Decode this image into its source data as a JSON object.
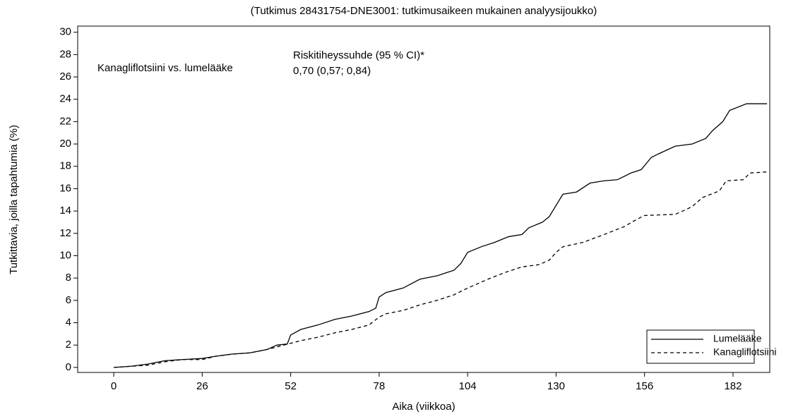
{
  "chart_data": {
    "type": "line",
    "title": "(Tutkimus 28431754-DNE3001: tutkimusaikeen mukainen analyysijoukko)",
    "x_label": "Aika (viikkoa)",
    "y_label": "Tutkittavia, joilla tapahtumia (%)",
    "annotations": [
      "Kanagliflotsiini vs. lumelääke",
      "Riskitiheyssuhde (95 % CI)*",
      "0,70 (0,57; 0,84)"
    ],
    "xlim": [
      -10.6,
      192.8
    ],
    "ylim": [
      -0.45,
      30.55
    ],
    "xticks": [
      0,
      26,
      52,
      78,
      104,
      130,
      156,
      182
    ],
    "yticks": [
      0,
      2,
      4,
      6,
      8,
      10,
      12,
      14,
      16,
      18,
      20,
      22,
      24,
      26,
      28,
      30
    ],
    "legend": "lower right",
    "series": [
      {
        "name": "Lumelääke",
        "color": "#000000",
        "line_style": "solid",
        "x": [
          0,
          5,
          10,
          15,
          20,
          26,
          30,
          35,
          40,
          45,
          48,
          51,
          52,
          55,
          60,
          65,
          70,
          75,
          77,
          78,
          80,
          85,
          90,
          95,
          100,
          102,
          104,
          108,
          112,
          116,
          120,
          122,
          126,
          128,
          130,
          132,
          136,
          140,
          144,
          148,
          152,
          155,
          158,
          160,
          165,
          170,
          174,
          176,
          179,
          181,
          186,
          192
        ],
        "values": [
          0,
          0.1,
          0.3,
          0.6,
          0.7,
          0.8,
          1.0,
          1.2,
          1.3,
          1.6,
          2.0,
          2.1,
          2.9,
          3.4,
          3.8,
          4.3,
          4.6,
          5.0,
          5.3,
          6.3,
          6.7,
          7.1,
          7.9,
          8.2,
          8.7,
          9.3,
          10.3,
          10.8,
          11.2,
          11.7,
          11.9,
          12.5,
          13.0,
          13.5,
          14.5,
          15.5,
          15.7,
          16.5,
          16.7,
          16.8,
          17.4,
          17.7,
          18.8,
          19.1,
          19.8,
          20.0,
          20.5,
          21.2,
          22.0,
          23.0,
          23.6,
          23.6
        ]
      },
      {
        "name": "Kanagliflotsiini",
        "color": "#000000",
        "line_style": "dashed",
        "x": [
          0,
          10,
          15,
          20,
          26,
          30,
          35,
          40,
          45,
          50,
          55,
          60,
          65,
          70,
          75,
          78,
          80,
          85,
          90,
          95,
          100,
          104,
          110,
          115,
          120,
          125,
          128,
          130,
          132,
          138,
          145,
          150,
          154,
          156,
          165,
          168,
          170,
          173,
          178,
          180,
          185,
          187,
          192
        ],
        "values": [
          0,
          0.2,
          0.5,
          0.7,
          0.7,
          1.0,
          1.2,
          1.3,
          1.6,
          2.0,
          2.4,
          2.7,
          3.1,
          3.4,
          3.8,
          4.5,
          4.8,
          5.1,
          5.6,
          6.0,
          6.5,
          7.1,
          7.9,
          8.5,
          9.0,
          9.2,
          9.6,
          10.3,
          10.8,
          11.2,
          12.0,
          12.6,
          13.3,
          13.6,
          13.7,
          14.1,
          14.4,
          15.2,
          15.8,
          16.7,
          16.8,
          17.4,
          17.5
        ]
      }
    ]
  }
}
